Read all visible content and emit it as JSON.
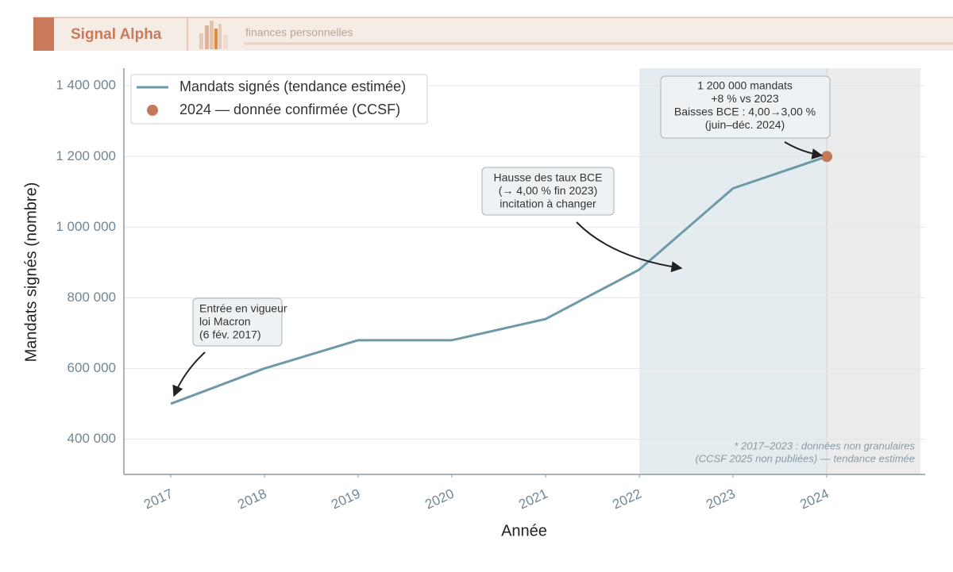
{
  "header": {
    "brand": "Signal Alpha",
    "tagline": "finances personnelles"
  },
  "chart_data": {
    "type": "line",
    "x_label": "Année",
    "y_label": "Mandats signés (nombre)",
    "x": [
      2017,
      2018,
      2019,
      2020,
      2021,
      2022,
      2023,
      2024
    ],
    "series": [
      {
        "name": "Mandats signés (tendance estimée)",
        "color": "#6e9aa8",
        "kind": "line",
        "x": [
          2017,
          2018,
          2019,
          2020,
          2021,
          2022,
          2023,
          2024
        ],
        "values": [
          500000,
          600000,
          680000,
          680000,
          740000,
          880000,
          1110000,
          1200000
        ]
      },
      {
        "name": "2024 — donnée confirmée (CCSF)",
        "color": "#c47a5a",
        "kind": "point",
        "x": [
          2024
        ],
        "values": [
          1200000
        ]
      }
    ],
    "xlim": [
      2016.5,
      2025.05
    ],
    "ylim": [
      300000,
      1450000
    ],
    "xticks": [
      2017,
      2018,
      2019,
      2020,
      2021,
      2022,
      2023,
      2024
    ],
    "yticks": [
      {
        "value": 400000,
        "label": "400 000"
      },
      {
        "value": 600000,
        "label": "600 000"
      },
      {
        "value": 800000,
        "label": "800 000"
      },
      {
        "value": 1000000,
        "label": "1 000 000"
      },
      {
        "value": 1200000,
        "label": "1 200 000"
      },
      {
        "value": 1400000,
        "label": "1 400 000"
      }
    ],
    "grid": true,
    "legend": "upper left",
    "spans": [
      {
        "from": 2022,
        "to": 2024,
        "color": "#e4ecef"
      },
      {
        "from": 2024,
        "to": 2025,
        "color": "#ececec"
      }
    ],
    "annotations": [
      {
        "lines": [
          "Entrée en vigueur",
          "loi Macron",
          "(6 fév. 2017)"
        ]
      },
      {
        "lines": [
          "Hausse des taux BCE",
          "(→ 4,00 % fin 2023)",
          "incitation à changer"
        ]
      },
      {
        "lines": [
          "1 200 000 mandats",
          "+8 % vs 2023",
          "Baisses BCE : 4,00→3,00 %",
          "(juin–déc. 2024)"
        ]
      }
    ],
    "footnote": [
      "* 2017–2023 : données non granulaires",
      "(CCSF 2025 non publiées) — tendance estimée"
    ]
  }
}
